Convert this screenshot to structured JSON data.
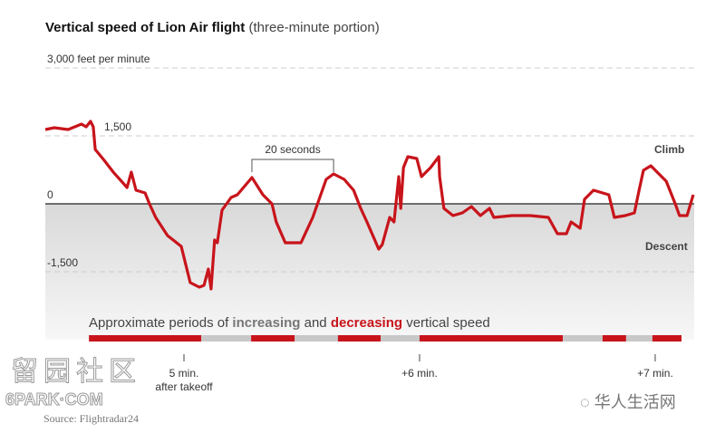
{
  "chart_data": {
    "type": "line",
    "title": "Vertical speed of Lion Air flight",
    "subtitle": "(three-minute portion)",
    "ylabel": "3,000 feet per minute",
    "ylim": [
      -2000,
      3000
    ],
    "xlim": [
      264.7,
      429.7
    ],
    "xunit": "seconds after takeoff",
    "y_ticks": [
      {
        "value": 3000,
        "label": "3,000 feet per minute"
      },
      {
        "value": 1500,
        "label": "1,500"
      },
      {
        "value": 0,
        "label": "0"
      },
      {
        "value": -1500,
        "label": "-1,500"
      }
    ],
    "x_ticks": [
      {
        "value": 300,
        "label": "5 min.",
        "sub": "after takeoff"
      },
      {
        "value": 360,
        "label": "+6 min.",
        "sub": ""
      },
      {
        "value": 420,
        "label": "+7 min.",
        "sub": ""
      }
    ],
    "region_labels": {
      "climb": "Climb",
      "descent": "Descent"
    },
    "annotation": {
      "label": "20 seconds",
      "from": 317.3,
      "to": 338.1
    },
    "series": [
      {
        "name": "Vertical speed",
        "color": "#c8141b",
        "points": [
          [
            264.7,
            1640
          ],
          [
            267.0,
            1680
          ],
          [
            270.5,
            1640
          ],
          [
            273.9,
            1760
          ],
          [
            275.1,
            1700
          ],
          [
            276.2,
            1820
          ],
          [
            276.9,
            1700
          ],
          [
            277.4,
            1200
          ],
          [
            279.7,
            960
          ],
          [
            282.0,
            700
          ],
          [
            285.5,
            360
          ],
          [
            286.6,
            700
          ],
          [
            287.8,
            300
          ],
          [
            290.1,
            240
          ],
          [
            291.2,
            0
          ],
          [
            292.8,
            -300
          ],
          [
            295.8,
            -700
          ],
          [
            299.3,
            -940
          ],
          [
            301.6,
            -1740
          ],
          [
            303.9,
            -1840
          ],
          [
            305.1,
            -1800
          ],
          [
            306.2,
            -1440
          ],
          [
            306.9,
            -1880
          ],
          [
            307.8,
            -800
          ],
          [
            308.5,
            -860
          ],
          [
            309.7,
            -140
          ],
          [
            312.0,
            140
          ],
          [
            313.6,
            200
          ],
          [
            317.3,
            580
          ],
          [
            320.1,
            200
          ],
          [
            322.4,
            0
          ],
          [
            323.5,
            -400
          ],
          [
            325.8,
            -860
          ],
          [
            329.8,
            -860
          ],
          [
            332.8,
            -300
          ],
          [
            336.2,
            540
          ],
          [
            338.1,
            660
          ],
          [
            340.8,
            540
          ],
          [
            343.2,
            300
          ],
          [
            345.0,
            -100
          ],
          [
            346.6,
            -400
          ],
          [
            349.6,
            -1000
          ],
          [
            350.5,
            -900
          ],
          [
            352.4,
            -300
          ],
          [
            353.5,
            -400
          ],
          [
            354.7,
            600
          ],
          [
            355.2,
            -100
          ],
          [
            355.9,
            800
          ],
          [
            357.0,
            1040
          ],
          [
            359.3,
            1000
          ],
          [
            360.5,
            600
          ],
          [
            362.8,
            800
          ],
          [
            364.9,
            1040
          ],
          [
            365.1,
            600
          ],
          [
            366.2,
            -100
          ],
          [
            368.5,
            -260
          ],
          [
            370.9,
            -200
          ],
          [
            373.2,
            -60
          ],
          [
            375.5,
            -260
          ],
          [
            377.8,
            -100
          ],
          [
            378.9,
            -300
          ],
          [
            383.5,
            -260
          ],
          [
            388.2,
            -260
          ],
          [
            392.8,
            -300
          ],
          [
            395.1,
            -660
          ],
          [
            397.4,
            -660
          ],
          [
            398.6,
            -400
          ],
          [
            400.9,
            -540
          ],
          [
            402.0,
            100
          ],
          [
            404.3,
            300
          ],
          [
            408.2,
            200
          ],
          [
            409.6,
            -300
          ],
          [
            412.4,
            -260
          ],
          [
            414.7,
            -200
          ],
          [
            415.9,
            300
          ],
          [
            417.0,
            740
          ],
          [
            418.9,
            840
          ],
          [
            420.5,
            700
          ],
          [
            422.8,
            500
          ],
          [
            425.1,
            0
          ],
          [
            426.2,
            -260
          ],
          [
            428.1,
            -260
          ],
          [
            429.7,
            200
          ]
        ]
      }
    ],
    "periods": {
      "label_parts": [
        "Approximate periods of ",
        "increasing",
        " and ",
        "decreasing",
        " vertical speed"
      ],
      "colors": {
        "increasing": "#c8c8c8",
        "decreasing": "#c8141b"
      },
      "segments": [
        {
          "type": "decreasing",
          "start": 275.8,
          "end": 304.4
        },
        {
          "type": "increasing",
          "start": 304.4,
          "end": 317.1
        },
        {
          "type": "decreasing",
          "start": 317.1,
          "end": 328.2
        },
        {
          "type": "increasing",
          "start": 328.2,
          "end": 339.2
        },
        {
          "type": "decreasing",
          "start": 339.2,
          "end": 350.1
        },
        {
          "type": "increasing",
          "start": 350.1,
          "end": 360.0
        },
        {
          "type": "decreasing",
          "start": 360.0,
          "end": 396.5
        },
        {
          "type": "increasing",
          "start": 396.5,
          "end": 406.6
        },
        {
          "type": "decreasing",
          "start": 406.6,
          "end": 412.6
        },
        {
          "type": "increasing",
          "start": 412.6,
          "end": 419.3
        },
        {
          "type": "decreasing",
          "start": 419.3,
          "end": 426.7
        }
      ]
    },
    "source": "Source: Flightradar24"
  },
  "watermarks": {
    "left": "留园社区",
    "left_sub": "6PARK·COM",
    "right": "华人生活网"
  }
}
